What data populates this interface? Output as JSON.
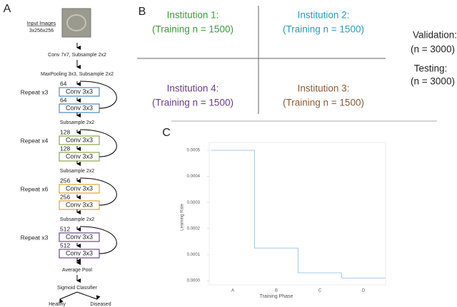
{
  "panels": {
    "a": "A",
    "b": "B",
    "c": "C"
  },
  "architecture": {
    "input_label": "Input Images",
    "input_size": "3x256x256",
    "steps": [
      "Conv 7x7, Subsample 2x2",
      "MaxPooling 3x3, Subsample 2x2"
    ],
    "blocks": [
      {
        "repeat": "Repeat x3",
        "channels": [
          "64",
          "64"
        ],
        "layers": [
          "Conv 3x3",
          "Conv 3x3"
        ],
        "after": "Subsample 2x2",
        "color": "#4a8ac8"
      },
      {
        "repeat": "Repeat x4",
        "channels": [
          "128",
          "128"
        ],
        "layers": [
          "Conv 3x3",
          "Conv 3x3"
        ],
        "after": "Subsample 2x2",
        "color": "#8aa84a"
      },
      {
        "repeat": "Repeat x6",
        "channels": [
          "256",
          "256"
        ],
        "layers": [
          "Conv 3x3",
          "Conv 3x3"
        ],
        "after": "Subsample 2x2",
        "color": "#d8a830"
      },
      {
        "repeat": "Repeat x3",
        "channels": [
          "512",
          "512"
        ],
        "layers": [
          "Conv 3x3",
          "Conv 3x3"
        ],
        "color": "#6a4a8a"
      }
    ],
    "final": [
      "Average Pool",
      "Sigmoid Classifier"
    ],
    "outputs": [
      "Healthy",
      "Diseased"
    ]
  },
  "institutions": [
    {
      "name": "Institution 1:",
      "training": "(Training n = 1500)",
      "color": "#3c9a3c"
    },
    {
      "name": "Institution 2:",
      "training": "(Training n = 1500)",
      "color": "#2a9ab8"
    },
    {
      "name": "Institution 4:",
      "training": "(Training n = 1500)",
      "color": "#6a3a8a"
    },
    {
      "name": "Institution 3:",
      "training": "(Training n = 1500)",
      "color": "#8b5a3a"
    }
  ],
  "validation": {
    "label": "Validation:",
    "n": "(n = 3000)"
  },
  "testing": {
    "label": "Testing:",
    "n": "(n = 3000)"
  },
  "chart_data": {
    "type": "line",
    "step": true,
    "x_label": "Training Phase",
    "y_label": "Learning Rate",
    "categories": [
      "A",
      "B",
      "C",
      "D"
    ],
    "values": [
      0.0005,
      0.000125,
      3e-05,
      1e-05
    ],
    "color": "#a8c8e8",
    "ylim": [
      0,
      0.0005
    ],
    "yticks": [
      {
        "value": 0,
        "label": "0.0000"
      },
      0.0001,
      0.0002,
      0.0003,
      0.0004,
      0.0005
    ]
  }
}
